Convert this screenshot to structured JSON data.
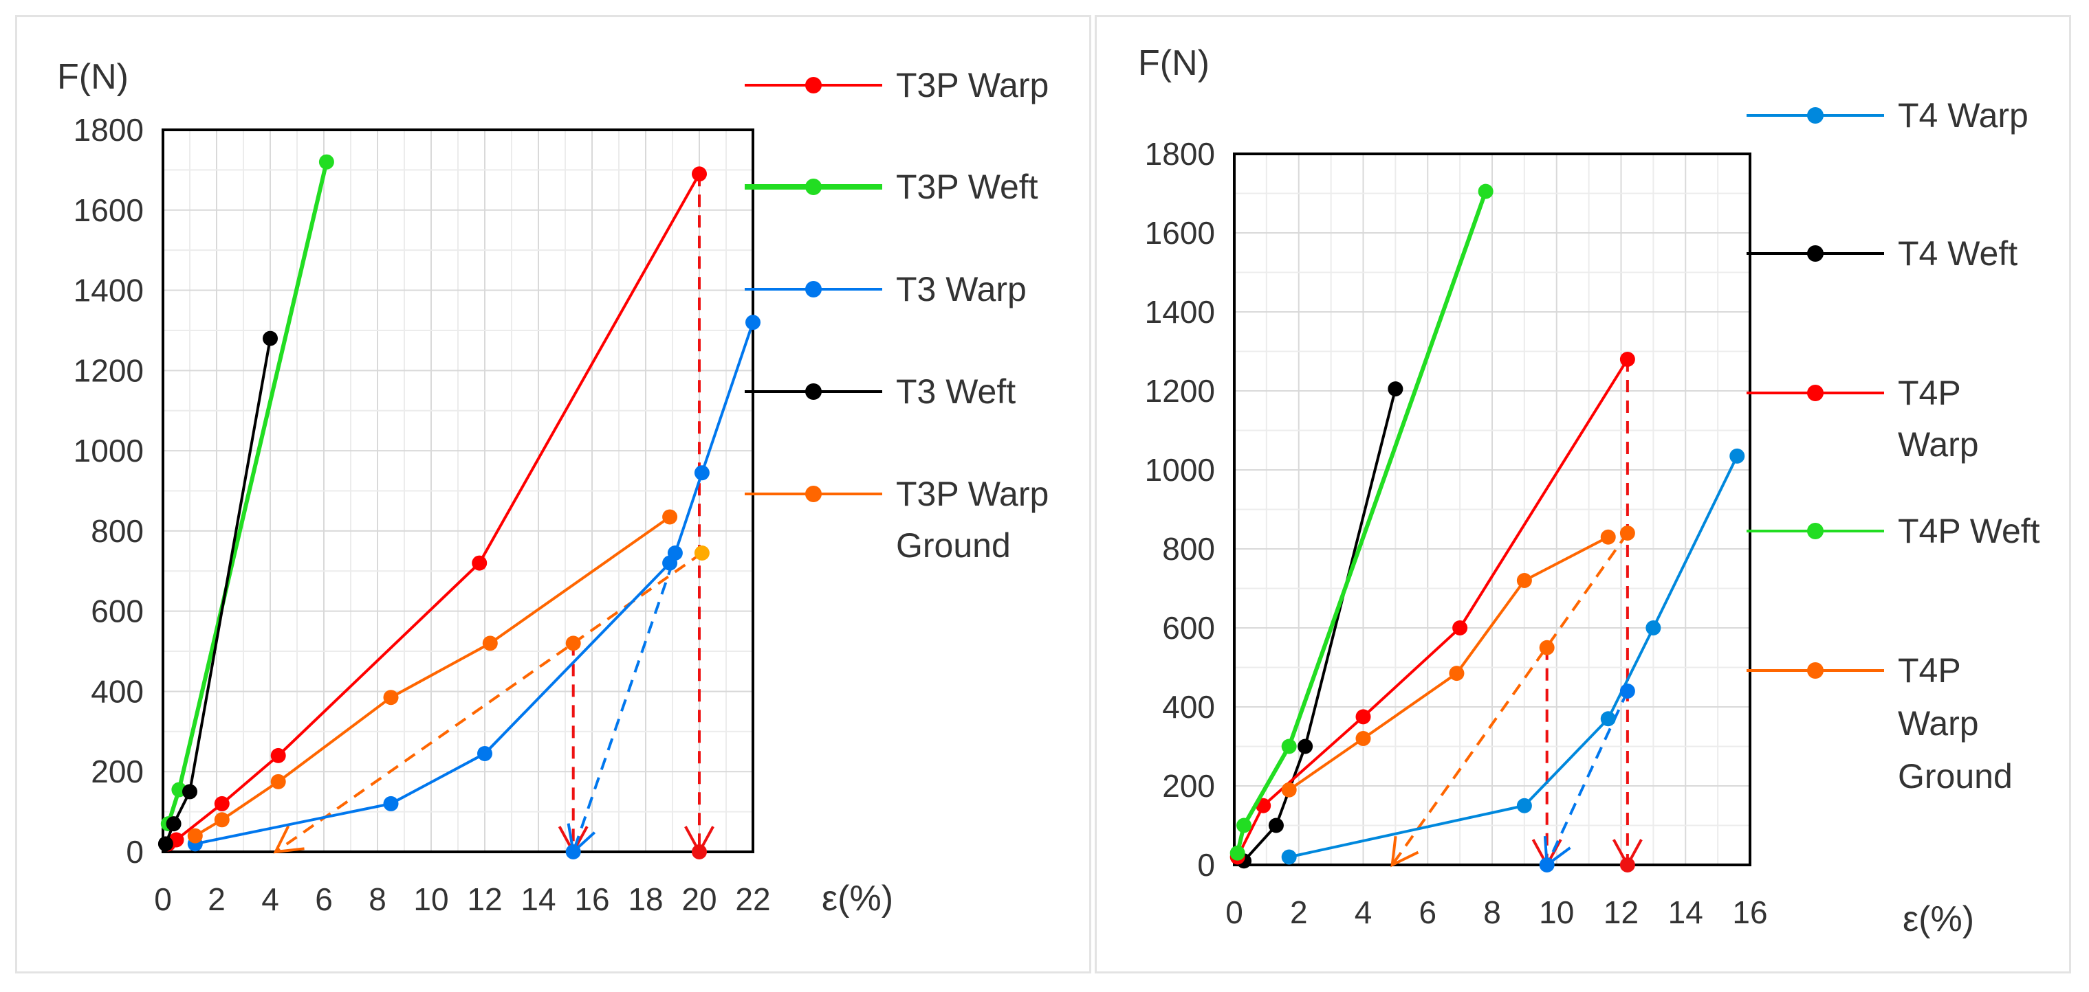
{
  "chart_data": [
    {
      "type": "line",
      "ylabel": "F(N)",
      "xlabel": "ε(%)",
      "xlim": [
        0,
        22
      ],
      "ylim": [
        0,
        1800
      ],
      "xticks": [
        "0",
        "2",
        "4",
        "6",
        "8",
        "10",
        "12",
        "14",
        "16",
        "18",
        "20",
        "22"
      ],
      "yticks": [
        "0",
        "200",
        "400",
        "600",
        "800",
        "1000",
        "1200",
        "1400",
        "1600",
        "1800"
      ],
      "grid": true,
      "legend_position": "right",
      "series": [
        {
          "name": "T3P Warp",
          "color": "#ff0000",
          "x": [
            0.2,
            0.5,
            2.2,
            4.3,
            11.8,
            20.0
          ],
          "y": [
            20,
            30,
            120,
            240,
            720,
            1690
          ]
        },
        {
          "name": "T3P Weft",
          "color": "#22dd22",
          "x": [
            0.2,
            0.6,
            6.1
          ],
          "y": [
            70,
            155,
            1720
          ]
        },
        {
          "name": "T3 Warp",
          "color": "#0077ee",
          "x": [
            1.2,
            8.5,
            12.0,
            18.9,
            19.1,
            20.1,
            22.0
          ],
          "y": [
            20,
            120,
            245,
            720,
            745,
            945,
            1320
          ]
        },
        {
          "name": "T3 Weft",
          "color": "#000000",
          "x": [
            0.1,
            0.4,
            1.0,
            4.0
          ],
          "y": [
            20,
            70,
            150,
            1280
          ]
        },
        {
          "name": "T3P Warp Ground",
          "color": "#ff6600",
          "x": [
            1.2,
            2.2,
            4.3,
            8.5,
            12.2,
            18.9
          ],
          "y": [
            40,
            80,
            175,
            385,
            520,
            835
          ]
        }
      ],
      "unload_lines": [
        {
          "color": "#ee1111",
          "x": [
            15.3,
            15.3
          ],
          "y": [
            520,
            0
          ]
        },
        {
          "color": "#ee1111",
          "x": [
            20.0,
            20.0
          ],
          "y": [
            1690,
            0
          ]
        },
        {
          "color": "#ff6600",
          "x": [
            20.1,
            4.2
          ],
          "y": [
            745,
            0
          ]
        },
        {
          "color": "#0077ee",
          "x": [
            19.0,
            15.3
          ],
          "y": [
            720,
            0
          ]
        }
      ],
      "reload_points": [
        {
          "color": "#ff6600",
          "x": 15.3,
          "y": 520
        },
        {
          "color": "#ffaa00",
          "x": 20.1,
          "y": 745
        },
        {
          "color": "#0077ee",
          "x": 15.3,
          "y": 0
        },
        {
          "color": "#ee1111",
          "x": 20.0,
          "y": 0
        }
      ]
    },
    {
      "type": "line",
      "ylabel": "F(N)",
      "xlabel": "ε(%)",
      "xlim": [
        0,
        16
      ],
      "ylim": [
        0,
        1800
      ],
      "xticks": [
        "0",
        "2",
        "4",
        "6",
        "8",
        "10",
        "12",
        "14",
        "16"
      ],
      "yticks": [
        "0",
        "200",
        "400",
        "600",
        "800",
        "1000",
        "1200",
        "1400",
        "1600",
        "1800"
      ],
      "grid": true,
      "legend_position": "right",
      "series": [
        {
          "name": "T4 Warp",
          "color": "#0088dd",
          "x": [
            1.7,
            9.0,
            11.6,
            13.0,
            15.6
          ],
          "y": [
            20,
            150,
            370,
            600,
            1035
          ]
        },
        {
          "name": "T4 Weft",
          "color": "#000000",
          "x": [
            0.3,
            1.3,
            2.2,
            5.0
          ],
          "y": [
            10,
            100,
            300,
            1205
          ]
        },
        {
          "name": "T4P Warp",
          "color": "#ff0000",
          "x": [
            0.1,
            0.9,
            4.0,
            7.0,
            12.2
          ],
          "y": [
            20,
            150,
            375,
            600,
            1280
          ]
        },
        {
          "name": "T4P Weft",
          "color": "#22dd22",
          "x": [
            0.1,
            0.3,
            1.7,
            7.8
          ],
          "y": [
            30,
            100,
            300,
            1705
          ]
        },
        {
          "name": "T4P Warp Ground",
          "color": "#ff6600",
          "x": [
            1.7,
            4.0,
            6.9,
            9.0,
            11.6
          ],
          "y": [
            190,
            320,
            485,
            720,
            830
          ]
        }
      ],
      "unload_lines": [
        {
          "color": "#ee1111",
          "x": [
            9.7,
            9.7
          ],
          "y": [
            550,
            0
          ]
        },
        {
          "color": "#ee1111",
          "x": [
            12.2,
            12.2
          ],
          "y": [
            1280,
            0
          ]
        },
        {
          "color": "#ff6600",
          "x": [
            12.2,
            4.9
          ],
          "y": [
            840,
            0
          ]
        },
        {
          "color": "#0077ee",
          "x": [
            12.2,
            9.7
          ],
          "y": [
            440,
            0
          ]
        }
      ],
      "reload_points": [
        {
          "color": "#ff6600",
          "x": 9.7,
          "y": 550
        },
        {
          "color": "#ff6600",
          "x": 12.2,
          "y": 840
        },
        {
          "color": "#0077ee",
          "x": 12.2,
          "y": 440
        },
        {
          "color": "#0077ee",
          "x": 9.7,
          "y": 0
        },
        {
          "color": "#ee1111",
          "x": 12.2,
          "y": 0
        }
      ]
    }
  ]
}
